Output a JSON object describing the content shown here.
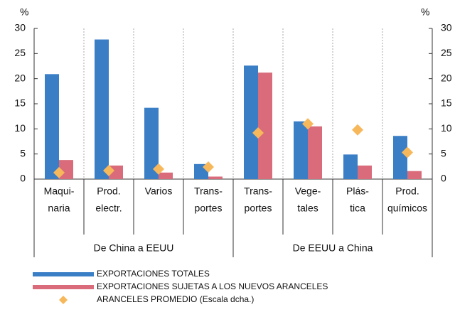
{
  "chart_data": {
    "type": "bar",
    "y_unit": "%",
    "y2_unit": "%",
    "categories": [
      [
        "Maqui-",
        "naria"
      ],
      [
        "Prod.",
        "electr."
      ],
      [
        "Varios"
      ],
      [
        "Trans-",
        "portes"
      ],
      [
        "Trans-",
        "portes"
      ],
      [
        "Vege-",
        "tales"
      ],
      [
        "Plás-",
        "tica"
      ],
      [
        "Prod.",
        "químicos"
      ]
    ],
    "groups": [
      {
        "label": "De China a EEUU",
        "count": 4
      },
      {
        "label": "De EEUU a China",
        "count": 4
      }
    ],
    "series": [
      {
        "name": "EXPORTACIONES TOTALES",
        "color": "#3a7ec6",
        "mark": "bar",
        "values": [
          20.9,
          27.8,
          14.2,
          3.0,
          22.6,
          11.5,
          4.9,
          8.6
        ]
      },
      {
        "name": "EXPORTACIONES SUJETAS A LOS NUEVOS ARANCELES",
        "color": "#d96b7a",
        "mark": "bar",
        "values": [
          3.8,
          2.7,
          1.3,
          0.5,
          21.2,
          10.5,
          2.7,
          1.6
        ]
      },
      {
        "name": "ARANCELES PROMEDIO (Escala dcha.)",
        "color": "#f7b85b",
        "mark": "diamond",
        "axis": "y2",
        "values": [
          1.3,
          1.7,
          2.0,
          2.4,
          9.2,
          11.0,
          9.8,
          5.3
        ]
      }
    ],
    "ylim": [
      0,
      30
    ],
    "yticks": [
      0,
      5,
      10,
      15,
      20,
      25,
      30
    ],
    "y2lim": [
      0,
      30
    ],
    "y2ticks": [
      0,
      5,
      10,
      15,
      20,
      25,
      30
    ],
    "grid": false
  }
}
